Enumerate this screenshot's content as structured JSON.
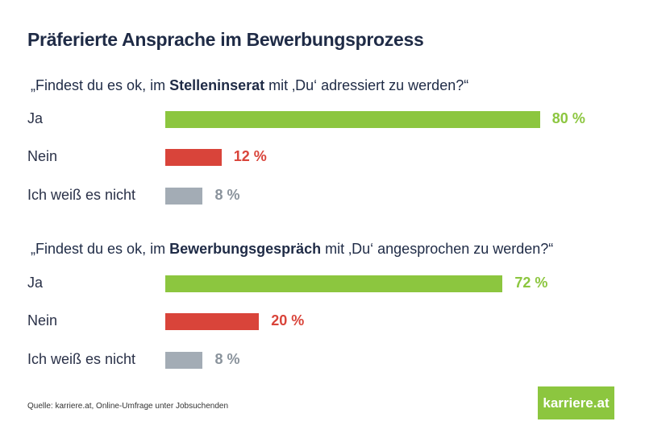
{
  "chart_data": {
    "type": "bar",
    "title": "Präferierte Ansprache im Bewerbungsprozess",
    "unit": "%",
    "xlim": [
      0,
      100
    ],
    "grid": false,
    "colors": {
      "Ja": "#8cc63f",
      "Nein": "#d9443a",
      "Ich weiß es nicht": "#a3acb5"
    },
    "groups": [
      {
        "question_pre": "„Findest du es ok, im ",
        "question_bold": "Stelleninserat",
        "question_post": " mit ‚Du‘ adressiert zu werden?“",
        "categories": [
          "Ja",
          "Nein",
          "Ich weiß es nicht"
        ],
        "values": [
          80,
          12,
          8
        ],
        "labels": [
          "80 %",
          "12 %",
          "8 %"
        ]
      },
      {
        "question_pre": "„Findest du es ok, im ",
        "question_bold": "Bewerbungsgespräch",
        "question_post": " mit ‚Du‘ angesprochen zu werden?“",
        "categories": [
          "Ja",
          "Nein",
          "Ich weiß es nicht"
        ],
        "values": [
          72,
          20,
          8
        ],
        "labels": [
          "72 %",
          "20 %",
          "8 %"
        ]
      }
    ]
  },
  "source": "Quelle: karriere.at, Online-Umfrage unter Jobsuchenden",
  "logo": "karriere.at"
}
